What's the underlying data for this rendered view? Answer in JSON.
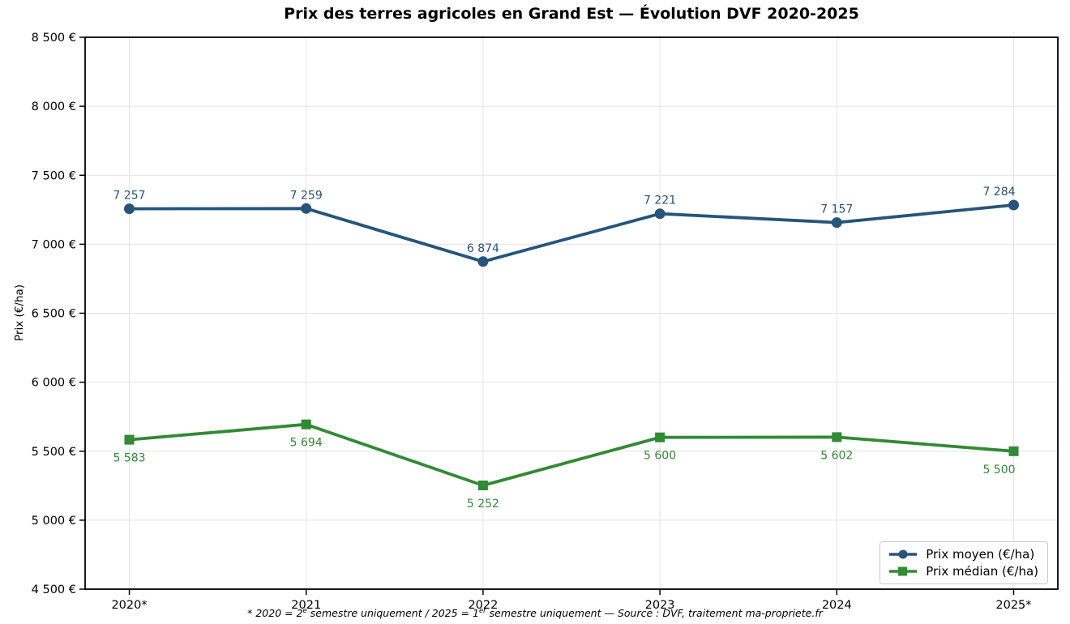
{
  "figure": {
    "title": "Prix des terres agricoles en Grand Est — Évolution DVF 2020-2025",
    "ylabel": "Prix (€/ha)",
    "footnote": {
      "part1": "* 2020 = 2",
      "sup1": "e",
      "part2": " semestre uniquement / 2025 = 1",
      "sup2": "er",
      "part3": " semestre uniquement — Source : DVF, traitement ma-propriete.fr"
    }
  },
  "chart_data": {
    "type": "line",
    "title": "Prix des terres agricoles en Grand Est — Évolution DVF 2020-2025",
    "xlabel": "",
    "ylabel": "Prix (€/ha)",
    "categories": [
      "2020*",
      "2021",
      "2022",
      "2023",
      "2024",
      "2025*"
    ],
    "series": [
      {
        "name": "Prix moyen (€/ha)",
        "values": [
          7257,
          7259,
          6874,
          7221,
          7157,
          7284
        ],
        "labels": [
          "7 257",
          "7 259",
          "6 874",
          "7 221",
          "7 157",
          "7 284"
        ],
        "color": "#25547c",
        "marker": "circle",
        "label_position": "above"
      },
      {
        "name": "Prix médian (€/ha)",
        "values": [
          5583,
          5694,
          5252,
          5600,
          5602,
          5500
        ],
        "labels": [
          "5 583",
          "5 694",
          "5 252",
          "5 600",
          "5 602",
          "5 500"
        ],
        "color": "#318a34",
        "marker": "square",
        "label_position": "below"
      }
    ],
    "ylim": [
      4500,
      8500
    ],
    "ytick_step": 500,
    "ytick_labels": [
      "4 500 €",
      "5 000 €",
      "5 500 €",
      "6 000 €",
      "6 500 €",
      "7 000 €",
      "7 500 €",
      "8 000 €",
      "8 500 €"
    ],
    "grid": true,
    "grid_color": "#e4e4e4",
    "legend_position": "lower right"
  }
}
